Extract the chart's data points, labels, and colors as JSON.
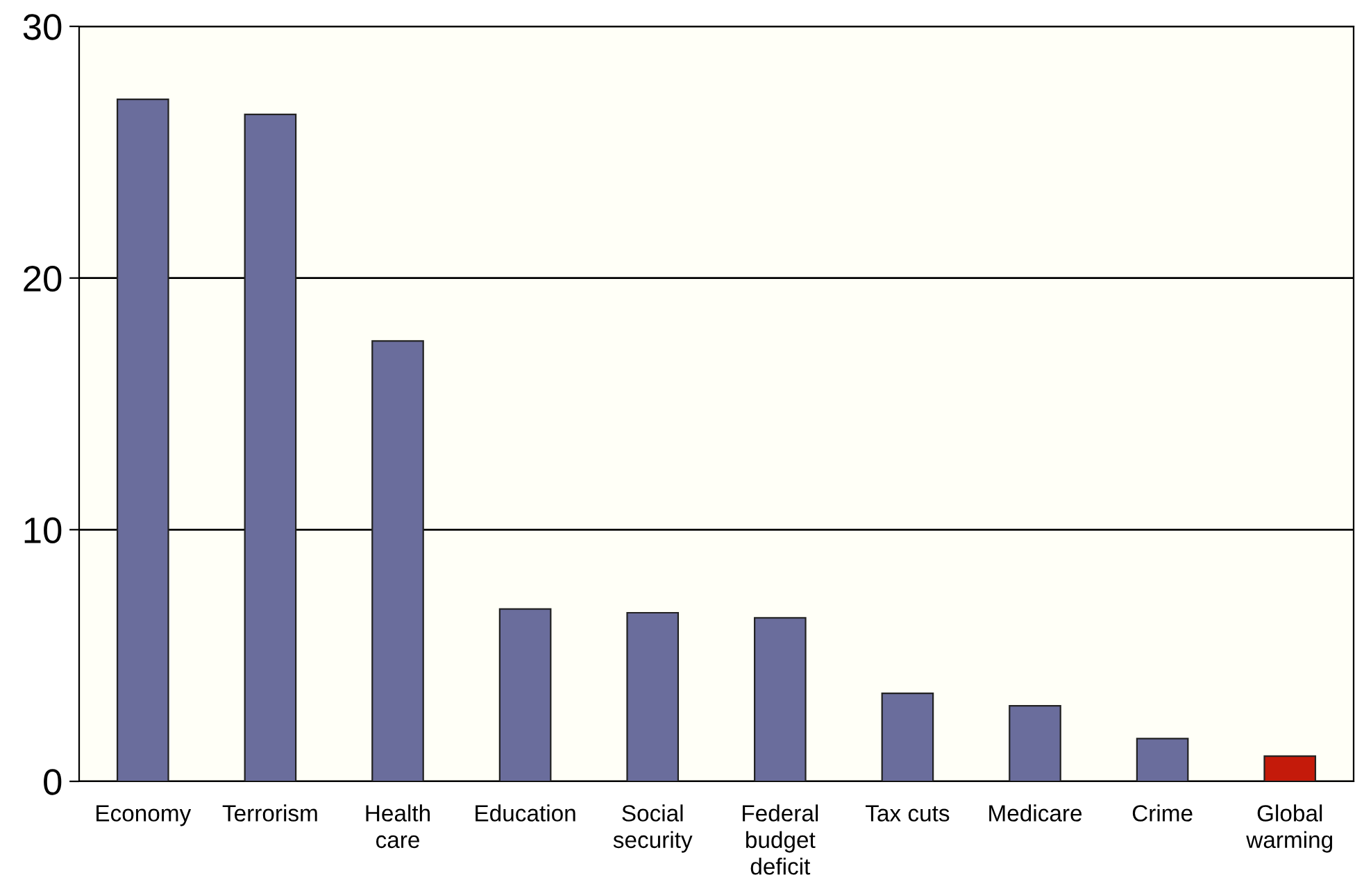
{
  "chart_data": {
    "type": "bar",
    "categories": [
      "Economy",
      "Terrorism",
      "Health\ncare",
      "Education",
      "Social\nsecurity",
      "Federal\nbudget\ndeficit",
      "Tax cuts",
      "Medicare",
      "Crime",
      "Global\nwarming"
    ],
    "values": [
      27.1,
      26.5,
      17.5,
      6.85,
      6.7,
      6.5,
      3.5,
      3.0,
      1.7,
      1.0
    ],
    "colors": [
      "#6a6d9c",
      "#6a6d9c",
      "#6a6d9c",
      "#6a6d9c",
      "#6a6d9c",
      "#6a6d9c",
      "#6a6d9c",
      "#6a6d9c",
      "#6a6d9c",
      "#c41a0a"
    ],
    "ylim": [
      0,
      30
    ],
    "yticks": [
      0,
      10,
      20,
      30
    ],
    "grid": "y"
  }
}
